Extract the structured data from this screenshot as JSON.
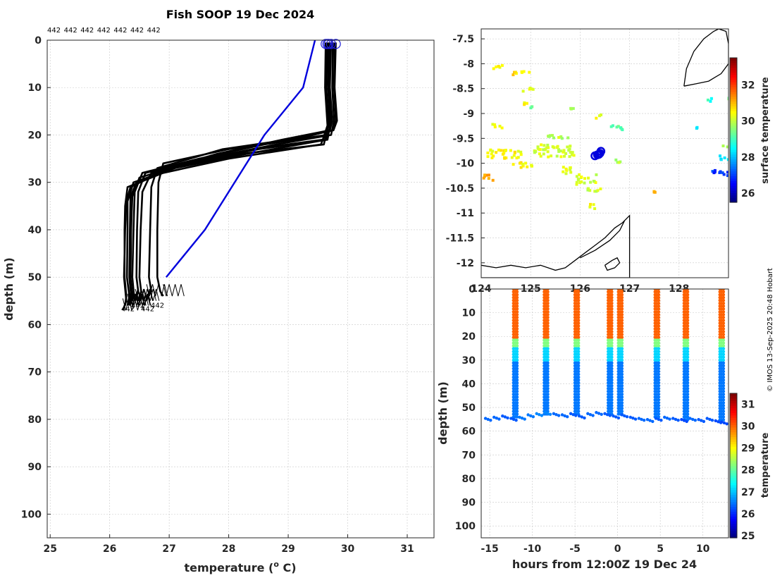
{
  "title": "Fish SOOP 19 Dec 2024",
  "profile_count_labels": [
    "442",
    "442",
    "442",
    "442",
    "442",
    "442",
    "442"
  ],
  "credit": "© IMOS 13-Sep-2025 20:48 Hobart",
  "colors": {
    "profile": "#000000",
    "climatology": "#0000dd",
    "marker": "#1f1fd8",
    "land": "#000000"
  },
  "chart_data": [
    {
      "id": "profiles",
      "type": "line",
      "xlabel": "temperature (o C)",
      "xlabel_main": "temperature (",
      "xlabel_sup": "o",
      "xlabel_end": " C)",
      "ylabel": "depth (m)",
      "xlim": [
        24.95,
        31.45
      ],
      "ylim": [
        105,
        0
      ],
      "xticks": [
        25,
        26,
        27,
        28,
        29,
        30,
        31
      ],
      "yticks": [
        0,
        10,
        20,
        30,
        40,
        50,
        60,
        70,
        80,
        90,
        100
      ],
      "grid": true,
      "reference_line": {
        "color": "#0000dd",
        "x": [
          29.45,
          29.25,
          28.6,
          27.6,
          26.95
        ],
        "y": [
          0,
          10,
          20,
          40,
          50
        ]
      },
      "profile_label": "442",
      "profile_label_values": [
        "442",
        "442",
        "442",
        "442"
      ],
      "series": [
        {
          "x": [
            29.63,
            29.62,
            29.66,
            29.58,
            28.4,
            27.2,
            26.45,
            26.35,
            26.34,
            26.33,
            26.36,
            26.33
          ],
          "y": [
            0.5,
            10,
            18,
            21,
            23,
            26,
            30,
            33,
            40,
            50,
            54,
            56
          ]
        },
        {
          "x": [
            29.68,
            29.67,
            29.7,
            29.63,
            28.6,
            27.5,
            26.55,
            26.42,
            26.4,
            26.38,
            26.41,
            26.37
          ],
          "y": [
            0.5,
            10,
            17,
            20,
            22,
            25,
            28,
            32,
            40,
            50,
            54,
            55
          ]
        },
        {
          "x": [
            29.72,
            29.7,
            29.74,
            29.7,
            28.9,
            27.8,
            26.7,
            26.55,
            26.52,
            26.5,
            26.53,
            26.48
          ],
          "y": [
            0.5,
            10,
            17,
            19,
            21,
            24,
            28,
            32,
            40,
            50,
            53,
            55
          ]
        },
        {
          "x": [
            29.8,
            29.78,
            29.82,
            29.76,
            29.0,
            27.9,
            26.8,
            26.7,
            26.68,
            26.66,
            26.7,
            26.62
          ],
          "y": [
            0.5,
            10,
            17,
            19,
            21,
            23,
            27,
            31,
            40,
            50,
            53,
            54
          ]
        },
        {
          "x": [
            29.65,
            29.63,
            29.67,
            29.6,
            28.2,
            27.0,
            26.35,
            26.28,
            26.26,
            26.24,
            26.28,
            26.22
          ],
          "y": [
            0.5,
            10,
            18,
            22,
            24,
            27,
            31,
            34,
            40,
            50,
            55,
            57
          ]
        },
        {
          "x": [
            29.7,
            29.69,
            29.72,
            29.66,
            28.5,
            27.3,
            26.5,
            26.38,
            26.36,
            26.35,
            26.38,
            26.34
          ],
          "y": [
            0.5,
            10,
            17,
            21,
            23,
            26,
            29,
            33,
            40,
            50,
            54,
            56
          ]
        },
        {
          "x": [
            29.75,
            29.74,
            29.77,
            29.72,
            28.8,
            27.6,
            26.6,
            26.48,
            26.46,
            26.45,
            26.48,
            26.43
          ],
          "y": [
            0.5,
            10,
            17,
            20,
            22,
            25,
            28,
            32,
            40,
            50,
            53,
            55
          ]
        },
        {
          "x": [
            29.66,
            29.64,
            29.68,
            29.55,
            28.0,
            26.9,
            26.3,
            26.26,
            26.25,
            26.25,
            26.28,
            26.26
          ],
          "y": [
            0.5,
            10,
            18,
            22,
            25,
            28,
            31,
            35,
            40,
            50,
            54,
            56
          ]
        },
        {
          "x": [
            29.78,
            29.77,
            29.8,
            29.74,
            29.1,
            28.0,
            26.9,
            26.82,
            26.8,
            26.8,
            26.85,
            26.9
          ],
          "y": [
            0.5,
            10,
            17,
            19,
            21,
            23,
            26,
            30,
            40,
            50,
            53,
            54
          ]
        },
        {
          "x": [
            29.69,
            29.68,
            29.71,
            29.64,
            28.3,
            27.1,
            26.4,
            26.3,
            26.3,
            26.29,
            26.33,
            26.3
          ],
          "y": [
            0.5,
            10,
            18,
            21,
            24,
            27,
            30,
            34,
            40,
            50,
            54,
            56
          ]
        }
      ],
      "surface_markers": {
        "x": [
          29.63,
          29.68,
          29.72,
          29.8,
          29.66
        ],
        "y": [
          0.8,
          0.8,
          0.8,
          0.8,
          0.8
        ]
      }
    },
    {
      "id": "map",
      "type": "heatmap",
      "colorbar_label": "surface temperature",
      "colorbar_ticks": [
        26,
        28,
        30,
        32
      ],
      "clim": [
        25.5,
        33.5
      ],
      "xlim": [
        124,
        129
      ],
      "ylim": [
        -12.3,
        -7.3
      ],
      "xticks": [
        124,
        125,
        126,
        127,
        128
      ],
      "yticks": [
        -7.5,
        -8,
        -8.5,
        -9,
        -9.5,
        -10,
        -10.5,
        -11,
        -11.5,
        -12
      ],
      "ytick_labels": [
        "-7.5",
        "-8",
        "-8.5",
        "-9",
        "-9.5",
        "-10",
        "-10.5",
        "-11",
        "-11.5",
        "-12"
      ],
      "grid": true,
      "track": {
        "lon": [
          126.3,
          126.35,
          126.4,
          126.42,
          126.38
        ],
        "lat": [
          -9.85,
          -9.83,
          -9.8,
          -9.76,
          -9.82
        ]
      },
      "sst_patches": [
        {
          "lon": 124.2,
          "lat": -8.0,
          "w": 0.3,
          "h": 0.08,
          "t": 30.5
        },
        {
          "lon": 124.6,
          "lat": -8.1,
          "w": 0.35,
          "h": 0.1,
          "t": 30.7
        },
        {
          "lon": 124.8,
          "lat": -8.45,
          "w": 0.25,
          "h": 0.08,
          "t": 30.4
        },
        {
          "lon": 124.8,
          "lat": -8.75,
          "w": 0.1,
          "h": 0.06,
          "t": 30.6
        },
        {
          "lon": 124.95,
          "lat": -8.8,
          "w": 0.1,
          "h": 0.08,
          "t": 29.5
        },
        {
          "lon": 124.2,
          "lat": -9.15,
          "w": 0.2,
          "h": 0.12,
          "t": 30.3
        },
        {
          "lon": 124.1,
          "lat": -9.7,
          "w": 0.75,
          "h": 0.18,
          "t": 30.5
        },
        {
          "lon": 124.6,
          "lat": -9.95,
          "w": 0.4,
          "h": 0.12,
          "t": 30.6
        },
        {
          "lon": 125.05,
          "lat": -9.6,
          "w": 0.8,
          "h": 0.25,
          "t": 30.2
        },
        {
          "lon": 125.3,
          "lat": -9.4,
          "w": 0.45,
          "h": 0.1,
          "t": 30.0
        },
        {
          "lon": 125.7,
          "lat": -8.85,
          "w": 0.2,
          "h": 0.06,
          "t": 29.6
        },
        {
          "lon": 125.55,
          "lat": -10.05,
          "w": 0.3,
          "h": 0.15,
          "t": 30.4
        },
        {
          "lon": 125.9,
          "lat": -10.2,
          "w": 0.4,
          "h": 0.2,
          "t": 30.2
        },
        {
          "lon": 126.1,
          "lat": -10.45,
          "w": 0.3,
          "h": 0.12,
          "t": 30.1
        },
        {
          "lon": 126.15,
          "lat": -10.75,
          "w": 0.12,
          "h": 0.15,
          "t": 30.4
        },
        {
          "lon": 126.25,
          "lat": -9.0,
          "w": 0.15,
          "h": 0.08,
          "t": 30.3
        },
        {
          "lon": 126.55,
          "lat": -9.2,
          "w": 0.35,
          "h": 0.1,
          "t": 29.3
        },
        {
          "lon": 124.0,
          "lat": -10.2,
          "w": 0.25,
          "h": 0.12,
          "t": 31.3
        },
        {
          "lon": 126.6,
          "lat": -9.9,
          "w": 0.2,
          "h": 0.08,
          "t": 29.9
        },
        {
          "lon": 127.45,
          "lat": -10.5,
          "w": 0.05,
          "h": 0.06,
          "t": 31.0
        },
        {
          "lon": 128.55,
          "lat": -8.65,
          "w": 0.08,
          "h": 0.08,
          "t": 28.8
        },
        {
          "lon": 128.9,
          "lat": -8.65,
          "w": 0.1,
          "h": 0.1,
          "t": 29.6
        },
        {
          "lon": 128.8,
          "lat": -9.8,
          "w": 0.2,
          "h": 0.12,
          "t": 28.2
        },
        {
          "lon": 128.65,
          "lat": -10.1,
          "w": 0.4,
          "h": 0.15,
          "t": 26.9
        },
        {
          "lon": 128.85,
          "lat": -9.55,
          "w": 0.15,
          "h": 0.1,
          "t": 30.0
        },
        {
          "lon": 128.3,
          "lat": -9.25,
          "w": 0.05,
          "h": 0.05,
          "t": 28.5
        }
      ],
      "land": [
        {
          "lon": [
            128.1,
            128.15,
            128.3,
            128.5,
            128.7,
            128.8,
            128.95,
            129.0,
            129.0,
            128.85,
            128.6,
            128.35,
            128.1
          ],
          "lat": [
            -8.45,
            -8.1,
            -7.75,
            -7.5,
            -7.35,
            -7.3,
            -7.35,
            -7.6,
            -8.0,
            -8.2,
            -8.35,
            -8.4,
            -8.45
          ]
        },
        {
          "lon": [
            124.0,
            124.3,
            124.6,
            124.9,
            125.2,
            125.5,
            125.7,
            125.9,
            126.1,
            126.3,
            126.5,
            126.7,
            126.85,
            126.95,
            127.0,
            127.0,
            124.0
          ],
          "lat": [
            -12.05,
            -12.1,
            -12.05,
            -12.1,
            -12.05,
            -12.15,
            -12.1,
            -11.95,
            -11.8,
            -11.65,
            -11.5,
            -11.3,
            -11.2,
            -11.1,
            -11.05,
            -12.3,
            -12.3
          ]
        },
        {
          "lon": [
            126.0,
            126.3,
            126.6,
            126.8,
            126.9
          ],
          "lat": [
            -11.9,
            -11.75,
            -11.55,
            -11.35,
            -11.15
          ]
        },
        {
          "lon": [
            126.5,
            126.65,
            126.75,
            126.8,
            126.7,
            126.55,
            126.5
          ],
          "lat": [
            -12.05,
            -11.95,
            -11.9,
            -12.0,
            -12.1,
            -12.15,
            -12.05
          ]
        }
      ]
    },
    {
      "id": "section",
      "type": "scatter",
      "xlabel": "hours from 12:00Z 19 Dec 24",
      "ylabel": "depth (m)",
      "colorbar_label": "temperature",
      "colorbar_ticks": [
        25,
        26,
        27,
        28,
        29,
        30,
        31
      ],
      "clim": [
        24.9,
        31.5
      ],
      "xlim": [
        -16,
        13
      ],
      "ylim": [
        105,
        0
      ],
      "xticks": [
        -15,
        -10,
        -5,
        0,
        5,
        10
      ],
      "yticks": [
        0,
        10,
        20,
        30,
        40,
        50,
        60,
        70,
        80,
        90,
        100
      ],
      "grid": true,
      "casts": [
        -12.0,
        -8.4,
        -4.8,
        -0.9,
        0.3,
        4.6,
        8.0,
        12.2
      ],
      "cast_bottoms": [
        55,
        53,
        54,
        54,
        54,
        55,
        56,
        56
      ],
      "bottom_track": {
        "hours": [
          -15.5,
          -14.5,
          -13.5,
          -12.5,
          -11.5,
          -10.5,
          -9.5,
          -8.5,
          -7.5,
          -6.5,
          -5.5,
          -4.5,
          -3.5,
          -2.5,
          -1.5,
          -0.5,
          0.5,
          1.5,
          2.5,
          3.5,
          4.5,
          5.5,
          6.5,
          7.5,
          8.5,
          9.5,
          10.5,
          11.5,
          12.2
        ],
        "depth": [
          55,
          54.5,
          54,
          55,
          54.5,
          53.5,
          53,
          52.5,
          53,
          53.5,
          53,
          54,
          53,
          52.5,
          53,
          54,
          53.5,
          54.5,
          55,
          55.5,
          55,
          54.5,
          55,
          55.5,
          55,
          55.5,
          55,
          56,
          56.5
        ],
        "temp": [
          26.4,
          26.4,
          26.3,
          26.3,
          26.5,
          26.5,
          26.6,
          26.6,
          26.4,
          26.4,
          26.3,
          26.3,
          26.4,
          26.4,
          26.3,
          26.3,
          26.3,
          26.3,
          26.4,
          26.4,
          26.3,
          26.4,
          26.3,
          26.2,
          26.4,
          26.3,
          26.3,
          26.2,
          26.2
        ]
      }
    }
  ]
}
